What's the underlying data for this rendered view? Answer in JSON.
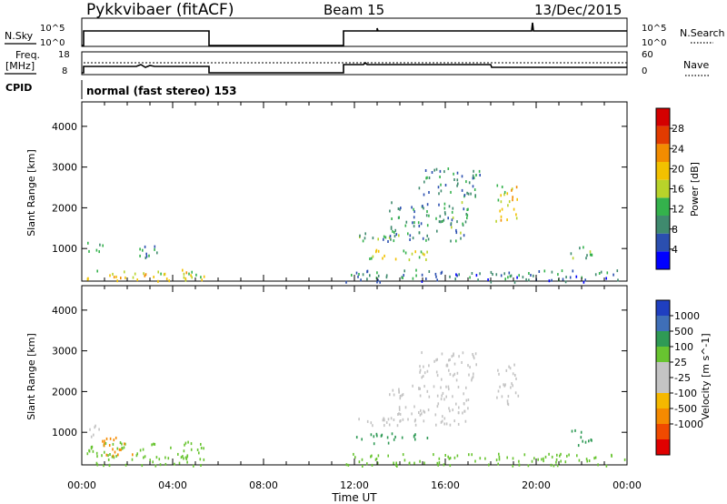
{
  "header": {
    "station": "Pykkvibaer (fitACF)",
    "beam": "Beam 15",
    "date": "13/Dec/2015"
  },
  "params_panel": {
    "nsky_label": "N.Sky",
    "freq_label": "Freq.",
    "freq_unit": "[MHz]",
    "cpid_label": "CPID",
    "nsearch_label": "N.Search",
    "nave_label": "Nave",
    "nsky_ticks": [
      "10^5",
      "10^0"
    ],
    "nsearch_ticks": [
      "10^5",
      "10^0"
    ],
    "freq_ticks": [
      "18",
      "8"
    ],
    "nave_ticks": [
      "60",
      "0"
    ],
    "cpid_text": "normal (fast stereo) 153"
  },
  "time_axis": {
    "ticks": [
      "00:00",
      "04:00",
      "08:00",
      "12:00",
      "16:00",
      "20:00",
      "00:00"
    ],
    "title": "Time UT"
  },
  "colors": {
    "power_scale": [
      "#0000ff",
      "#2b4fb0",
      "#3f8a6e",
      "#34b24c",
      "#b8d32a",
      "#f2c100",
      "#f28c00",
      "#e23b00",
      "#d40000"
    ],
    "velocity_scale": [
      "#e00000",
      "#f04a00",
      "#f58a00",
      "#f5b800",
      "#c4c4c4",
      "#c4c4c4",
      "#68c430",
      "#2f9a55",
      "#3f6fb8",
      "#1f3fc0"
    ]
  },
  "chart_data": [
    {
      "type": "heatmap",
      "name": "power",
      "ylabel": "Slant Range [km]",
      "yticks": [
        1000,
        2000,
        3000,
        4000
      ],
      "ylim": [
        200,
        4600
      ],
      "xlim_hours": [
        0,
        24
      ],
      "colorbar": {
        "label": "Power [dB]",
        "ticks": [
          4,
          8,
          12,
          16,
          20,
          24,
          28
        ],
        "range": [
          0,
          32
        ]
      },
      "scatter_regions": [
        {
          "t": [
            0.1,
            0.9
          ],
          "range": [
            900,
            1200
          ],
          "value": 10
        },
        {
          "t": [
            0.2,
            5.5
          ],
          "range": [
            200,
            500
          ],
          "value": 18
        },
        {
          "t": [
            2.4,
            3.5
          ],
          "range": [
            800,
            1200
          ],
          "value": 8
        },
        {
          "t": [
            11.6,
            14.0
          ],
          "range": [
            1200,
            1400
          ],
          "value": 10
        },
        {
          "t": [
            12.0,
            15.2
          ],
          "range": [
            750,
            1000
          ],
          "value": 16
        },
        {
          "t": [
            13.5,
            17.0
          ],
          "range": [
            1200,
            2200
          ],
          "value": 10
        },
        {
          "t": [
            14.8,
            17.5
          ],
          "range": [
            2300,
            3000
          ],
          "value": 8
        },
        {
          "t": [
            18.2,
            19.2
          ],
          "range": [
            1700,
            2700
          ],
          "value": 18
        },
        {
          "t": [
            11.6,
            23.9
          ],
          "range": [
            200,
            500
          ],
          "value": 8
        },
        {
          "t": [
            21.5,
            22.5
          ],
          "range": [
            700,
            1100
          ],
          "value": 12
        }
      ]
    },
    {
      "type": "heatmap",
      "name": "velocity",
      "ylabel": "Slant Range [km]",
      "yticks": [
        1000,
        2000,
        3000,
        4000
      ],
      "ylim": [
        200,
        4600
      ],
      "xlim_hours": [
        0,
        24
      ],
      "colorbar": {
        "label": "Velocity [m s^-1]",
        "ticks": [
          "1000",
          "500",
          "100",
          "25",
          "-25",
          "-100",
          "-500",
          "-1000"
        ]
      },
      "scatter_regions": [
        {
          "t": [
            0.1,
            0.9
          ],
          "range": [
            900,
            1200
          ],
          "value": 0
        },
        {
          "t": [
            0.2,
            5.5
          ],
          "range": [
            200,
            800
          ],
          "value": 50
        },
        {
          "t": [
            0.8,
            2.2
          ],
          "range": [
            400,
            900
          ],
          "value": -150
        },
        {
          "t": [
            11.6,
            14.0
          ],
          "range": [
            1200,
            1400
          ],
          "value": 0
        },
        {
          "t": [
            12.0,
            15.2
          ],
          "range": [
            750,
            1000
          ],
          "value": 120
        },
        {
          "t": [
            13.5,
            17.0
          ],
          "range": [
            1200,
            2200
          ],
          "value": 0
        },
        {
          "t": [
            14.8,
            17.5
          ],
          "range": [
            2300,
            3000
          ],
          "value": 0
        },
        {
          "t": [
            18.2,
            19.2
          ],
          "range": [
            1700,
            2700
          ],
          "value": 0
        },
        {
          "t": [
            11.6,
            23.9
          ],
          "range": [
            200,
            500
          ],
          "value": 40
        },
        {
          "t": [
            21.5,
            22.5
          ],
          "range": [
            700,
            1100
          ],
          "value": 120
        }
      ]
    }
  ]
}
